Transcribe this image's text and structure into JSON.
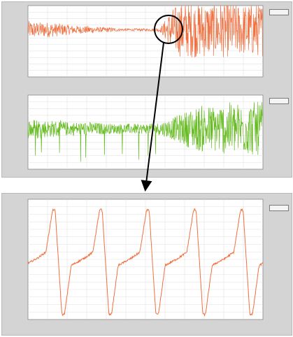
{
  "chart_data": [
    {
      "type": "line",
      "title": "",
      "xlabel": "",
      "ylabel": "",
      "xlim": [
        0,
        2400
      ],
      "ylim": [
        -1.6,
        1.2
      ],
      "grid": true,
      "legend": "top-right",
      "series": [
        {
          "color": "#f07040",
          "values": [
            0.35,
            0.3,
            0.3,
            0.25,
            0.2,
            0.15,
            0.15,
            0.1,
            0.1,
            0.05,
            0.05,
            0.05,
            0.05,
            0.1,
            0.8,
            1.1,
            1.1,
            1.1,
            1.05,
            1.1,
            1.05,
            1.0,
            1.05,
            1.05
          ]
        }
      ]
    },
    {
      "type": "line",
      "title": "",
      "xlabel": "",
      "ylabel": "",
      "xlim": [
        0,
        2400
      ],
      "ylim": [
        -1.2,
        1.0
      ],
      "grid": true,
      "legend": "top-right",
      "series": [
        {
          "color": "#66bb22",
          "values": [
            0.3,
            0.3,
            0.25,
            0.25,
            0.2,
            0.2,
            0.2,
            0.18,
            0.15,
            0.15,
            0.15,
            0.15,
            0.15,
            0.2,
            0.3,
            0.45,
            0.6,
            0.7,
            0.7,
            0.75,
            0.8,
            0.75,
            0.8,
            0.8
          ]
        }
      ]
    },
    {
      "type": "line",
      "title": "",
      "xlabel": "",
      "ylabel": "",
      "xlim": [
        0,
        10
      ],
      "ylim": [
        -1.0,
        1.0
      ],
      "grid": true,
      "legend": "top-right",
      "series": [
        {
          "color": "#f07040",
          "period": 2.0,
          "cycles": 5
        }
      ]
    }
  ],
  "icons": {
    "zoom": "circle-zoom-marker",
    "pointer": "arrow-pointer"
  }
}
